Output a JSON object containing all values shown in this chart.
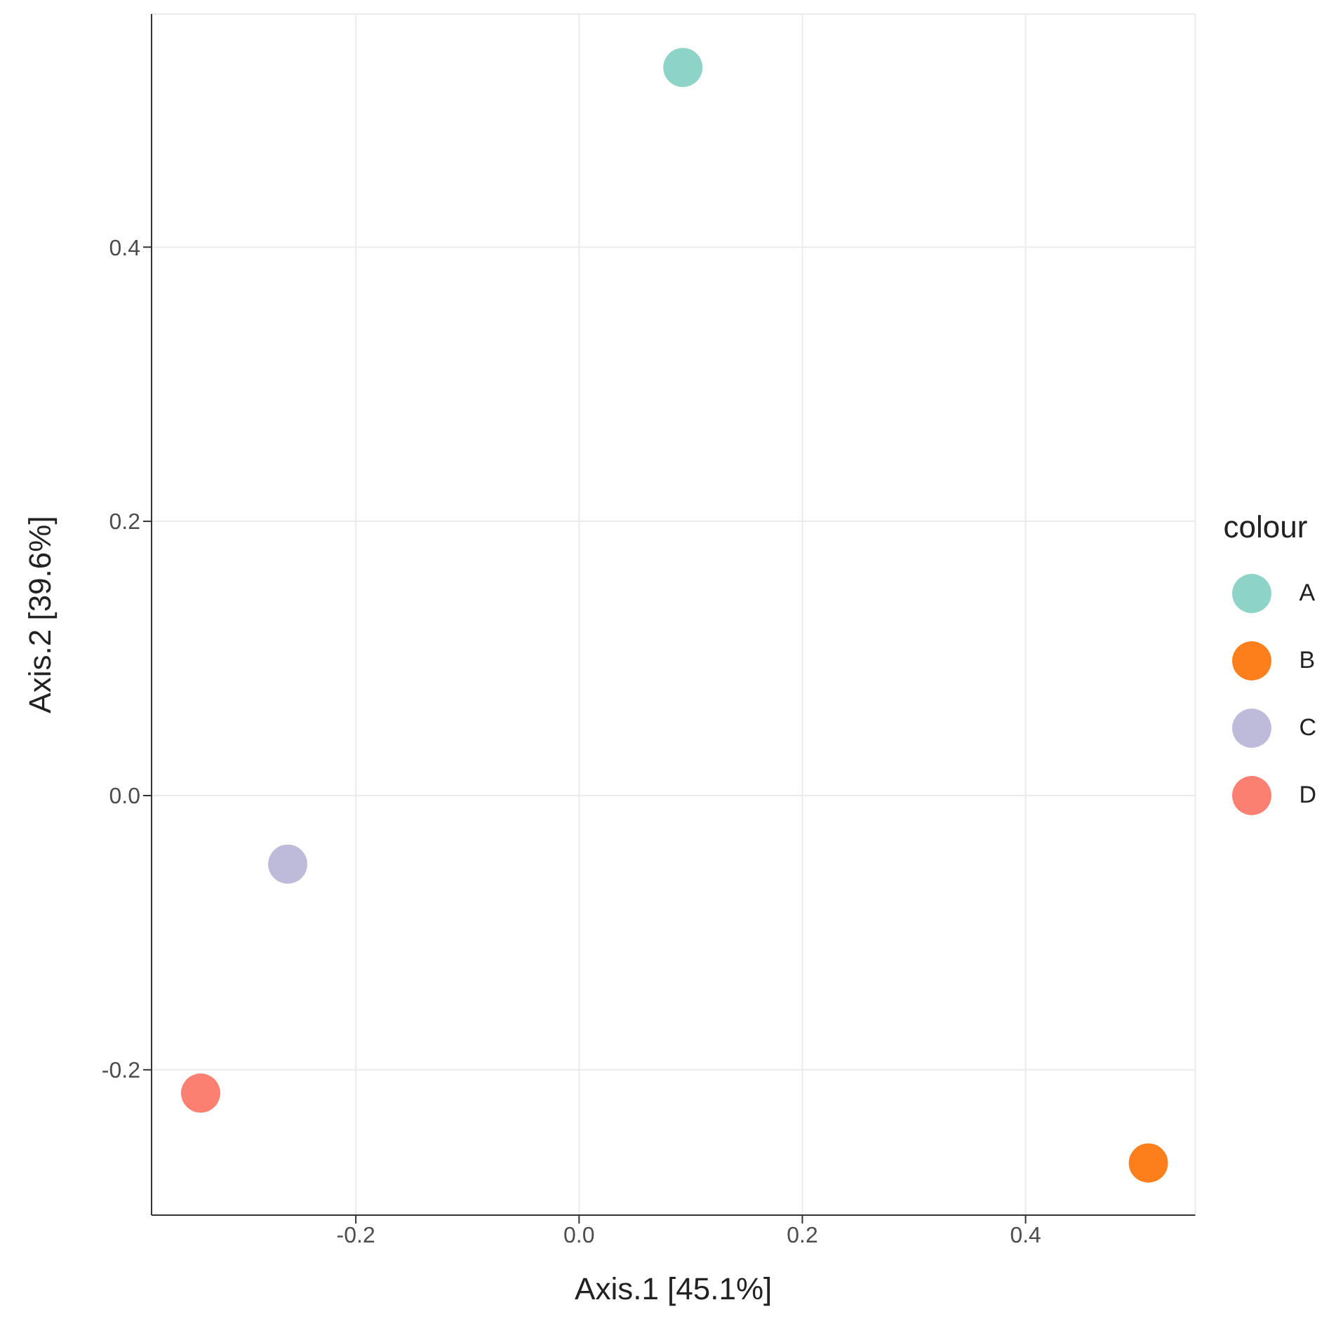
{
  "chart_data": {
    "type": "scatter",
    "xlabel": "Axis.1   [45.1%]",
    "ylabel": "Axis.2   [39.6%]",
    "legend_title": "colour",
    "legend": "right",
    "grid": true,
    "marker": "circle",
    "xlim": [
      -0.383,
      0.552
    ],
    "xticks": [
      -0.2,
      {
        "value": 0,
        "label": "0.0"
      },
      0.2,
      0.4
    ],
    "ylim": [
      -0.306,
      0.57
    ],
    "yticks": [
      -0.2,
      {
        "value": 0,
        "label": "0.0"
      },
      0.2,
      0.4
    ],
    "series": [
      {
        "name": "A",
        "color": "#8dd3c7",
        "x": [
          0.093
        ],
        "values": [
          0.531
        ]
      },
      {
        "name": "B",
        "color": "#fd7f1b",
        "x": [
          0.51
        ],
        "values": [
          -0.268
        ]
      },
      {
        "name": "C",
        "color": "#bebada",
        "x": [
          -0.261
        ],
        "values": [
          -0.05
        ]
      },
      {
        "name": "D",
        "color": "#fb8072",
        "x": [
          -0.339
        ],
        "values": [
          -0.217
        ]
      }
    ]
  }
}
